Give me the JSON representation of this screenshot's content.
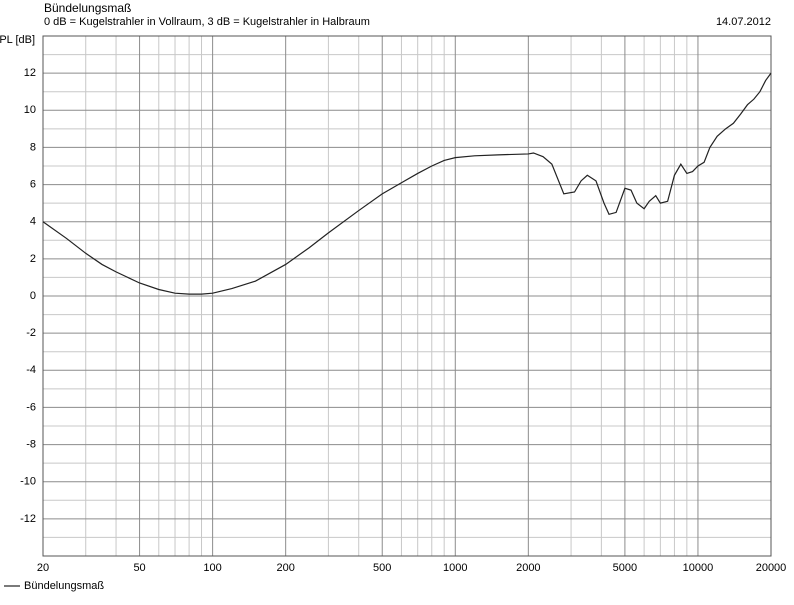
{
  "chart_data": {
    "type": "line",
    "title": "Bündelungsmaß",
    "subtitle": "0 dB = Kugelstrahler in Vollraum, 3 dB = Kugelstrahler in Halbraum",
    "date": "14.07.2012",
    "y_label": "SPL [dB]",
    "x_scale": "log",
    "grid": true,
    "legend": "bottom-left",
    "xlim": [
      20,
      20000
    ],
    "xticks": [
      20,
      50,
      100,
      200,
      500,
      1000,
      2000,
      5000,
      10000,
      20000
    ],
    "xminor": [
      30,
      40,
      60,
      70,
      80,
      90,
      300,
      400,
      600,
      700,
      800,
      900,
      3000,
      4000,
      6000,
      7000,
      8000,
      9000
    ],
    "ylim": [
      -14,
      14
    ],
    "yticks": [
      -12,
      -10,
      -8,
      -6,
      -4,
      -2,
      0,
      2,
      4,
      6,
      8,
      10,
      12
    ],
    "yminor": [
      -13,
      -11,
      -9,
      -7,
      -5,
      -3,
      -1,
      1,
      3,
      5,
      7,
      9,
      11,
      13
    ],
    "x": [
      20,
      25,
      30,
      35,
      40,
      50,
      60,
      70,
      80,
      90,
      100,
      120,
      150,
      200,
      250,
      300,
      400,
      500,
      600,
      700,
      800,
      900,
      1000,
      1200,
      1500,
      2000,
      2100,
      2300,
      2500,
      2800,
      3100,
      3300,
      3500,
      3800,
      4100,
      4300,
      4600,
      5000,
      5300,
      5600,
      6000,
      6300,
      6700,
      7000,
      7500,
      8000,
      8500,
      9000,
      9500,
      10000,
      10600,
      11200,
      12000,
      13000,
      14000,
      15000,
      16000,
      17000,
      18000,
      19000,
      20000
    ],
    "series": [
      {
        "name": "Bündelungsmaß",
        "color": "#222222",
        "values": [
          4.0,
          3.1,
          2.3,
          1.7,
          1.3,
          0.7,
          0.35,
          0.15,
          0.1,
          0.1,
          0.15,
          0.4,
          0.8,
          1.7,
          2.6,
          3.4,
          4.6,
          5.5,
          6.1,
          6.6,
          7.0,
          7.3,
          7.45,
          7.55,
          7.6,
          7.65,
          7.7,
          7.5,
          7.1,
          5.5,
          5.6,
          6.2,
          6.5,
          6.2,
          5.0,
          4.4,
          4.5,
          5.8,
          5.7,
          5.0,
          4.7,
          5.1,
          5.4,
          5.0,
          5.1,
          6.5,
          7.1,
          6.6,
          6.7,
          7.0,
          7.2,
          8.0,
          8.6,
          9.0,
          9.3,
          9.8,
          10.3,
          10.6,
          11.0,
          11.6,
          12.0
        ]
      }
    ]
  }
}
